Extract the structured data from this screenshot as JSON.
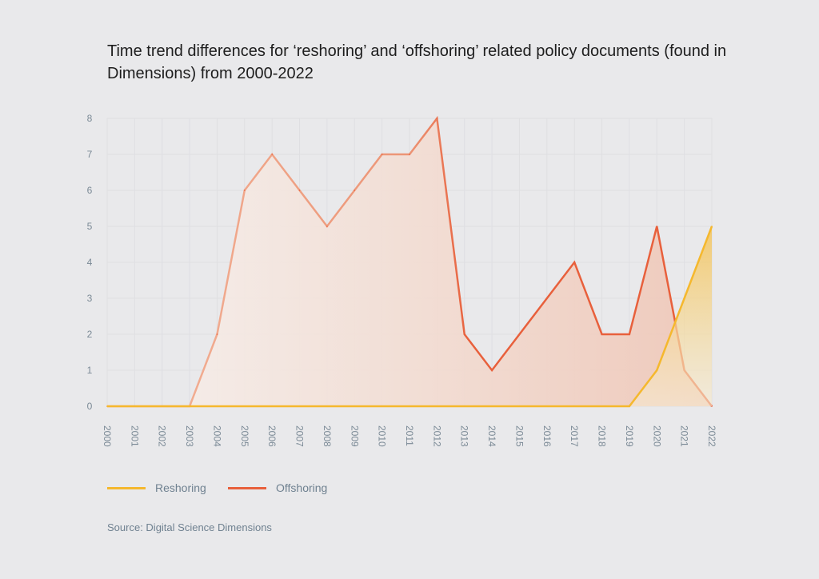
{
  "chart_data": {
    "type": "area",
    "title": "Time trend differences for ‘reshoring’ and ‘offshoring’ related policy documents (found in Dimensions) from 2000-2022",
    "xlabel": "",
    "ylabel": "",
    "x": [
      "2000",
      "2001",
      "2002",
      "2003",
      "2004",
      "2005",
      "2006",
      "2007",
      "2008",
      "2009",
      "2010",
      "2011",
      "2012",
      "2013",
      "2014",
      "2015",
      "2016",
      "2017",
      "2018",
      "2019",
      "2020",
      "2021",
      "2022"
    ],
    "yticks": [
      "0",
      "1",
      "2",
      "3",
      "4",
      "5",
      "6",
      "7",
      "8"
    ],
    "ylim": [
      0,
      8
    ],
    "grid": true,
    "legend_position": "bottom-left",
    "series": [
      {
        "name": "Reshoring",
        "color": "#f5b82e",
        "values": [
          0,
          0,
          0,
          0,
          0,
          0,
          0,
          0,
          0,
          0,
          0,
          0,
          0,
          0,
          0,
          0,
          0,
          0,
          0,
          0,
          1,
          3,
          5
        ]
      },
      {
        "name": "Offshoring",
        "color": "#e8603c",
        "values": [
          0,
          0,
          0,
          0,
          2,
          6,
          7,
          6,
          5,
          6,
          7,
          7,
          8,
          2,
          1,
          2,
          3,
          4,
          2,
          2,
          5,
          1,
          0
        ]
      }
    ],
    "source": "Source: Digital Science Dimensions"
  }
}
